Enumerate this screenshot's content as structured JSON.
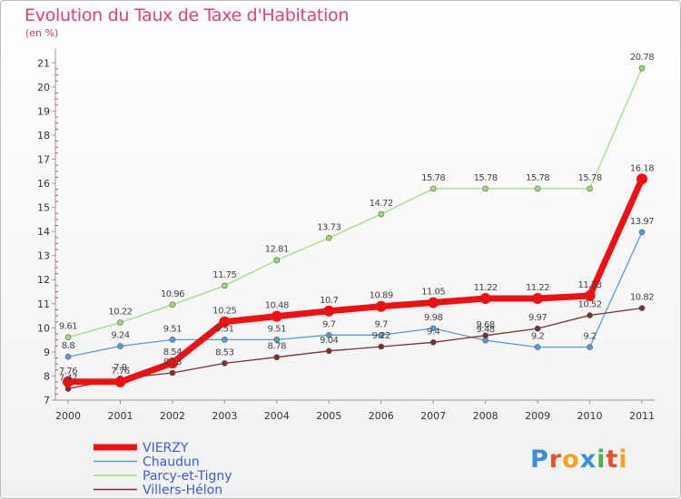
{
  "title": "Evolution du Taux de Taxe d'Habitation",
  "unit": "(en %)",
  "logo": {
    "letters": [
      "P",
      "r",
      "o",
      "x",
      "i",
      "t",
      "i"
    ],
    "colors": [
      "#3a8fd8",
      "#e8502a",
      "#f2a51c",
      "#3a8fd8",
      "#4bb543",
      "#e8502a",
      "#f2a51c"
    ]
  },
  "colors": {
    "axis": "#999999",
    "tick_text": "#333333",
    "label_text": "#444444",
    "ytick_accent": "#d0407a"
  },
  "chart_data": {
    "type": "line",
    "title": "Evolution du Taux de Taxe d'Habitation",
    "ylabel": "(en %)",
    "x": [
      "2000",
      "2001",
      "2002",
      "2003",
      "2004",
      "2005",
      "2006",
      "2007",
      "2008",
      "2009",
      "2010",
      "2011"
    ],
    "yticks": [
      7,
      8,
      9,
      10,
      11,
      12,
      13,
      14,
      15,
      16,
      17,
      18,
      19,
      20,
      21
    ],
    "ylim": [
      7,
      21.5
    ],
    "grid": false,
    "legend_position": "bottom-left",
    "series": [
      {
        "name": "Chaudun",
        "color": "#5b9bd5",
        "width": 1.3,
        "marker": 3,
        "values": [
          8.8,
          9.24,
          9.51,
          9.51,
          9.51,
          9.7,
          9.7,
          9.98,
          9.48,
          9.2,
          9.2,
          13.97
        ],
        "labels": [
          "8.8",
          "9.24",
          "9.51",
          "9.51",
          "9.51",
          "9.7",
          "9.7",
          "9.98",
          "9.48",
          "9.2",
          "9.2",
          "13.97"
        ]
      },
      {
        "name": "Parcy-et-Tigny",
        "color": "#9fdc7e",
        "width": 1.3,
        "marker": 3,
        "values": [
          9.61,
          10.22,
          10.96,
          11.75,
          12.81,
          13.73,
          14.72,
          15.78,
          15.78,
          15.78,
          15.78,
          20.78
        ],
        "labels": [
          "9.61",
          "10.22",
          "10.96",
          "11.75",
          "12.81",
          "13.73",
          "14.72",
          "15.78",
          "15.78",
          "15.78",
          "15.78",
          "20.78"
        ]
      },
      {
        "name": "Villers-Hélon",
        "color": "#7b2f2f",
        "width": 1.3,
        "marker": 3,
        "values": [
          7.47,
          7.9,
          8.13,
          8.53,
          8.78,
          9.04,
          9.22,
          9.4,
          9.68,
          9.97,
          10.52,
          10.82
        ],
        "labels": [
          "7.47",
          "7.9",
          "8.13",
          "8.53",
          "8.78",
          "9.04",
          "9.22",
          "9.4",
          "9.68",
          "9.97",
          "10.52",
          "10.82"
        ]
      },
      {
        "name": "VIERZY",
        "color": "#ee1111",
        "width": 7,
        "marker": 6,
        "values": [
          7.76,
          7.76,
          8.54,
          10.25,
          10.48,
          10.7,
          10.89,
          11.05,
          11.22,
          11.22,
          11.33,
          16.18
        ],
        "labels": [
          "7.76",
          "7.76",
          "8.54",
          "10.25",
          "10.48",
          "10.7",
          "10.89",
          "11.05",
          "11.22",
          "11.22",
          "11.33",
          "16.18"
        ]
      }
    ],
    "legend": [
      {
        "name": "VIERZY",
        "color": "#ee1111",
        "width": 7
      },
      {
        "name": "Chaudun",
        "color": "#5b9bd5",
        "width": 1.5
      },
      {
        "name": "Parcy-et-Tigny",
        "color": "#9fdc7e",
        "width": 1.5
      },
      {
        "name": "Villers-Hélon",
        "color": "#7b2f2f",
        "width": 1.5
      }
    ]
  }
}
